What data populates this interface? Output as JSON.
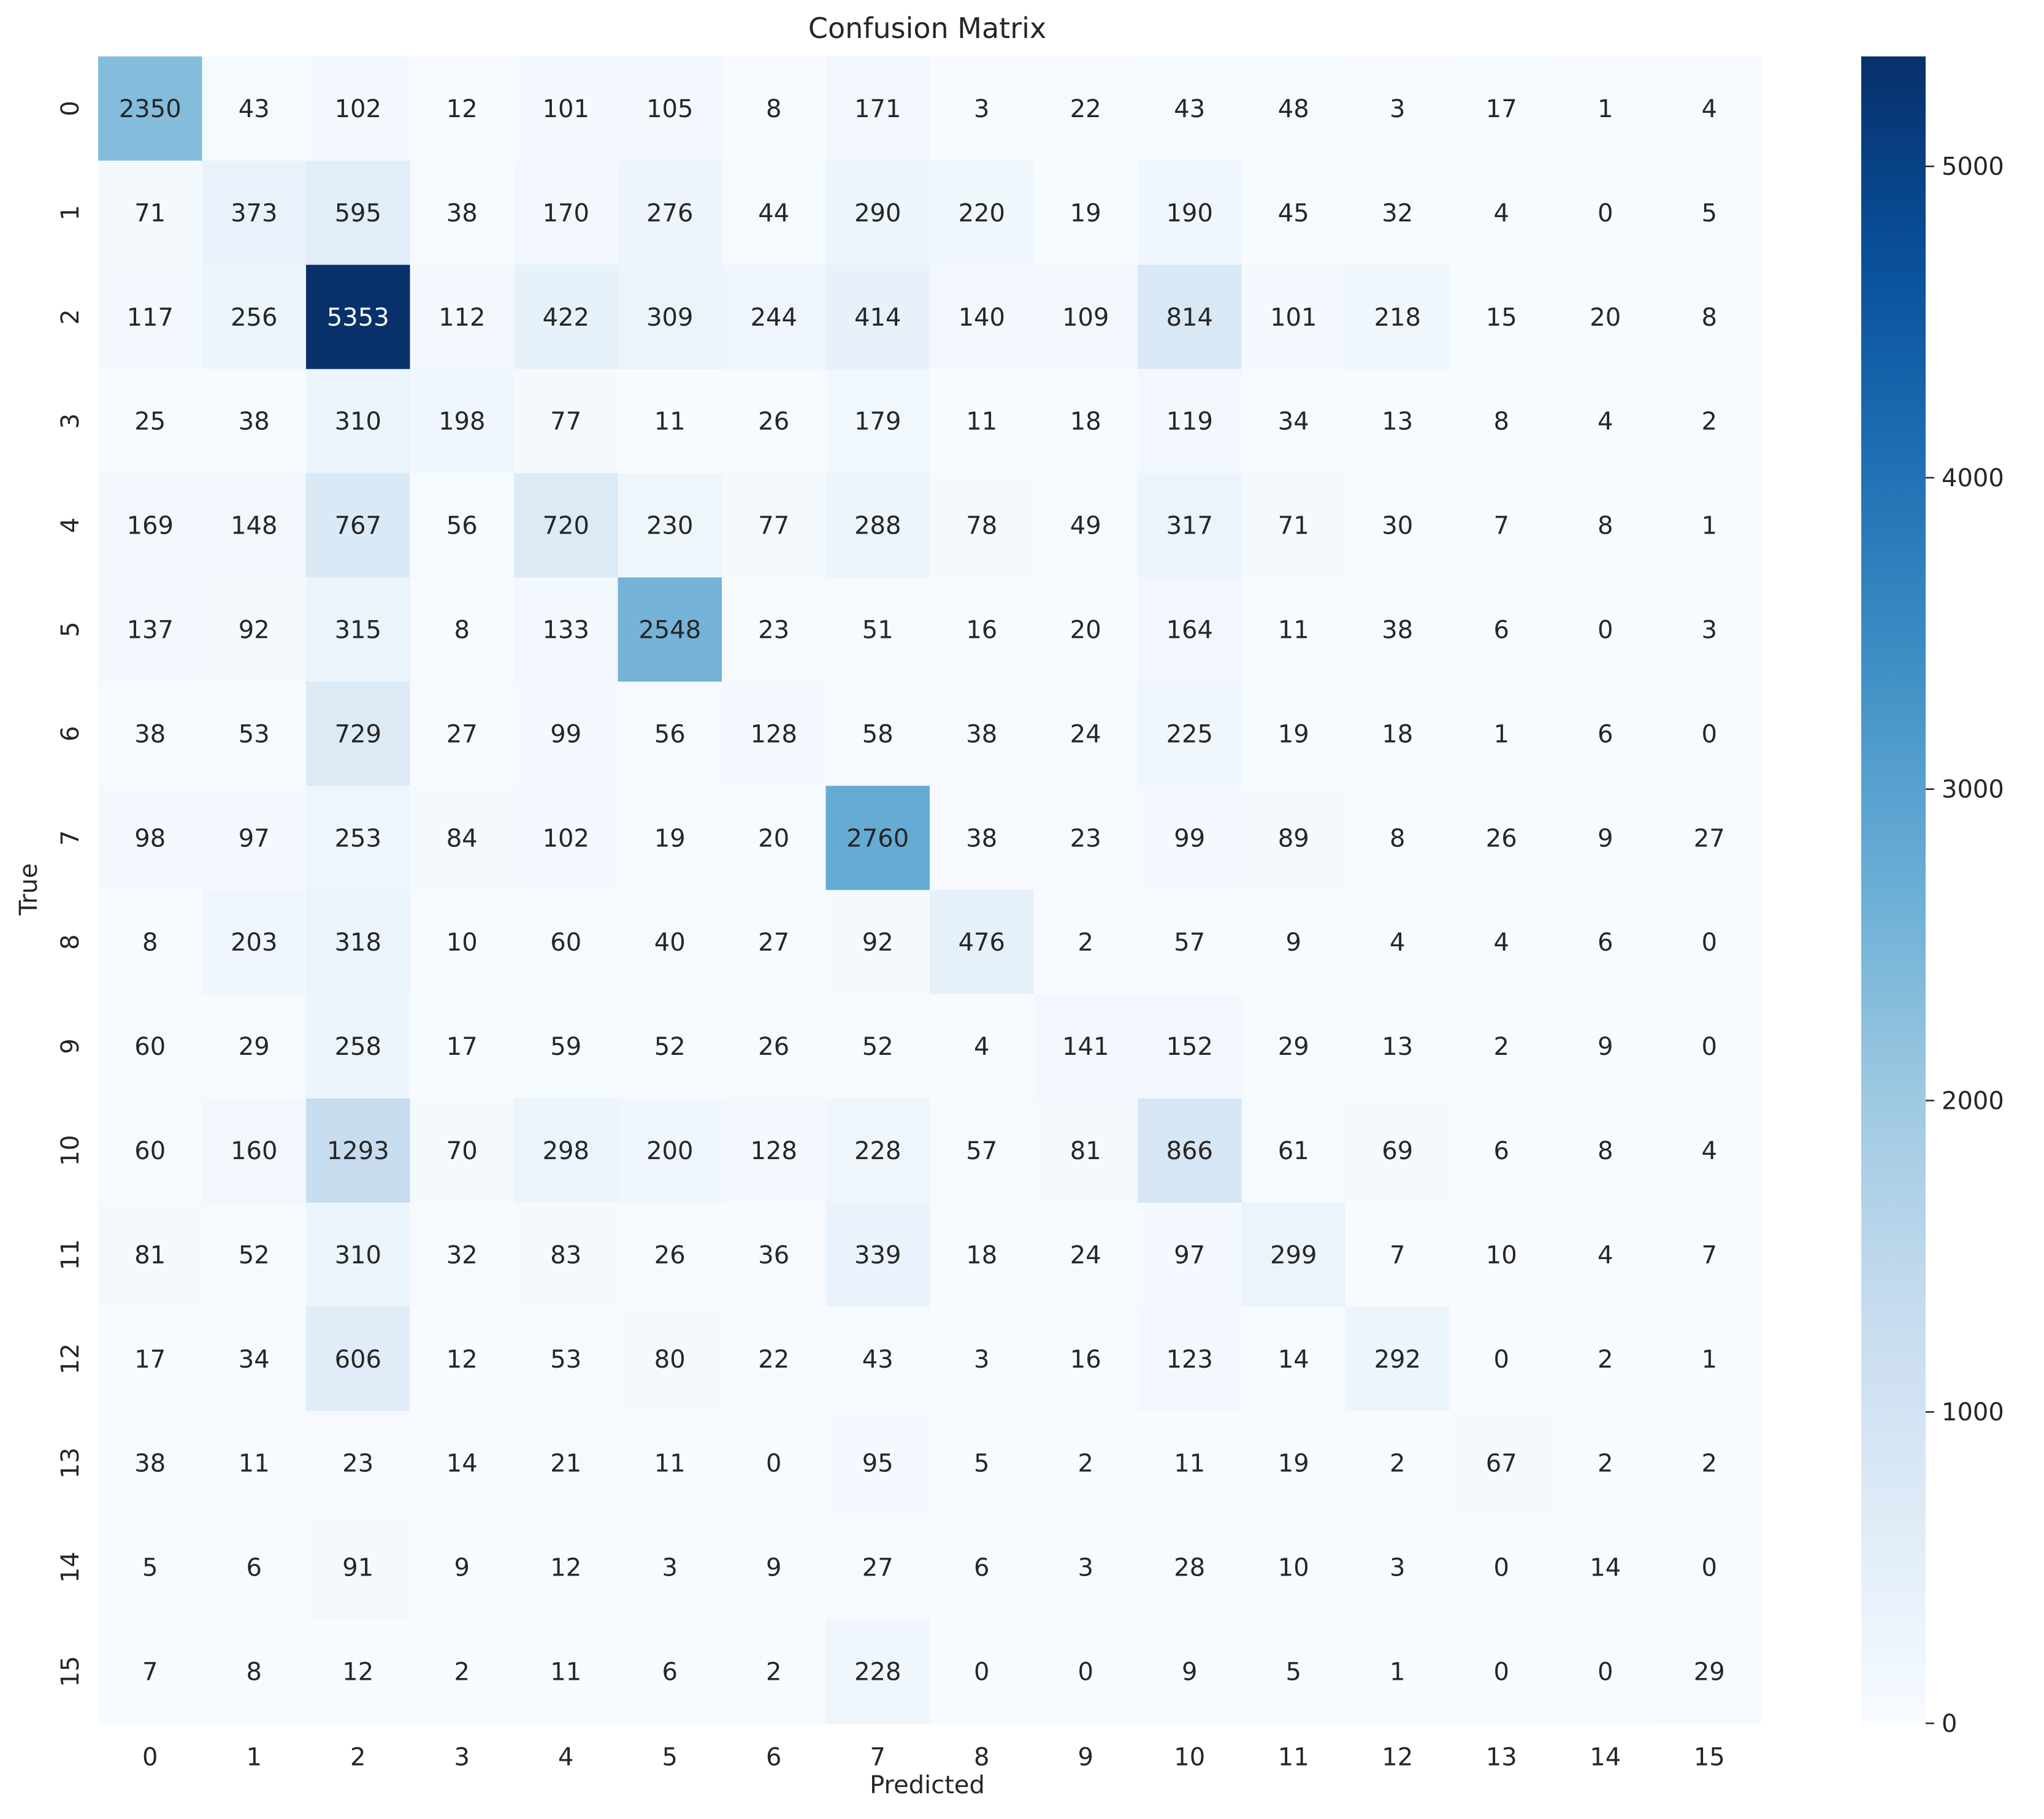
{
  "chart_data": {
    "type": "heatmap",
    "title": "Confusion Matrix",
    "xlabel": "Predicted",
    "ylabel": "True",
    "x_categories": [
      "0",
      "1",
      "2",
      "3",
      "4",
      "5",
      "6",
      "7",
      "8",
      "9",
      "10",
      "11",
      "12",
      "13",
      "14",
      "15"
    ],
    "y_categories": [
      "0",
      "1",
      "2",
      "3",
      "4",
      "5",
      "6",
      "7",
      "8",
      "9",
      "10",
      "11",
      "12",
      "13",
      "14",
      "15"
    ],
    "values": [
      [
        2350,
        43,
        102,
        12,
        101,
        105,
        8,
        171,
        3,
        22,
        43,
        48,
        3,
        17,
        1,
        4
      ],
      [
        71,
        373,
        595,
        38,
        170,
        276,
        44,
        290,
        220,
        19,
        190,
        45,
        32,
        4,
        0,
        5
      ],
      [
        117,
        256,
        5353,
        112,
        422,
        309,
        244,
        414,
        140,
        109,
        814,
        101,
        218,
        15,
        20,
        8
      ],
      [
        25,
        38,
        310,
        198,
        77,
        11,
        26,
        179,
        11,
        18,
        119,
        34,
        13,
        8,
        4,
        2
      ],
      [
        169,
        148,
        767,
        56,
        720,
        230,
        77,
        288,
        78,
        49,
        317,
        71,
        30,
        7,
        8,
        1
      ],
      [
        137,
        92,
        315,
        8,
        133,
        2548,
        23,
        51,
        16,
        20,
        164,
        11,
        38,
        6,
        0,
        3
      ],
      [
        38,
        53,
        729,
        27,
        99,
        56,
        128,
        58,
        38,
        24,
        225,
        19,
        18,
        1,
        6,
        0
      ],
      [
        98,
        97,
        253,
        84,
        102,
        19,
        20,
        2760,
        38,
        23,
        99,
        89,
        8,
        26,
        9,
        27
      ],
      [
        8,
        203,
        318,
        10,
        60,
        40,
        27,
        92,
        476,
        2,
        57,
        9,
        4,
        4,
        6,
        0
      ],
      [
        60,
        29,
        258,
        17,
        59,
        52,
        26,
        52,
        4,
        141,
        152,
        29,
        13,
        2,
        9,
        0
      ],
      [
        60,
        160,
        1293,
        70,
        298,
        200,
        128,
        228,
        57,
        81,
        866,
        61,
        69,
        6,
        8,
        4
      ],
      [
        81,
        52,
        310,
        32,
        83,
        26,
        36,
        339,
        18,
        24,
        97,
        299,
        7,
        10,
        4,
        7
      ],
      [
        17,
        34,
        606,
        12,
        53,
        80,
        22,
        43,
        3,
        16,
        123,
        14,
        292,
        0,
        2,
        1
      ],
      [
        38,
        11,
        23,
        14,
        21,
        11,
        0,
        95,
        5,
        2,
        11,
        19,
        2,
        67,
        2,
        2
      ],
      [
        5,
        6,
        91,
        9,
        12,
        3,
        9,
        27,
        6,
        3,
        28,
        10,
        3,
        0,
        14,
        0
      ],
      [
        7,
        8,
        12,
        2,
        11,
        6,
        2,
        228,
        0,
        0,
        9,
        5,
        1,
        0,
        0,
        29
      ]
    ],
    "colorbar": {
      "min": 0,
      "max": 5353,
      "ticks": [
        0,
        1000,
        2000,
        3000,
        4000,
        5000
      ],
      "colormap": "Blues"
    },
    "colors": {
      "low": "#f7fbff",
      "high": "#08306b",
      "text_dark": "#262626",
      "text_light": "#ffffff"
    }
  }
}
